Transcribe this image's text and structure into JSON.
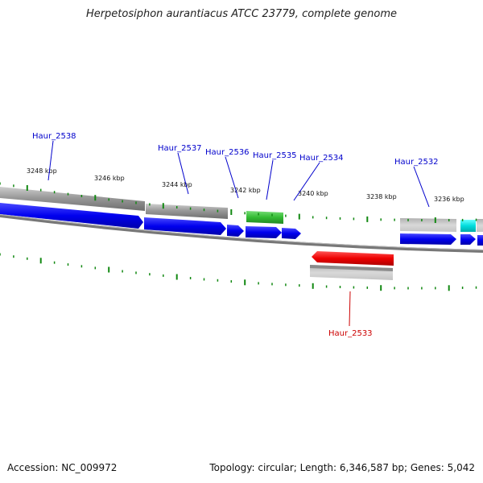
{
  "title": "Herpetosiphon aurantiacus ATCC 23779, complete genome",
  "footer": {
    "accession": "Accession: NC_009972",
    "summary": "Topology: circular; Length: 6,346,587 bp; Genes: 5,042"
  },
  "colors": {
    "forward_cds": "#0000ee",
    "reverse_cds": "#ee0000",
    "rna_green": "#33bb33",
    "cyan_feature": "#00dddd",
    "gray_feature": "#888888",
    "backbone": "#808080",
    "tick": "#118811",
    "label_blue": "#0000cc",
    "label_red": "#cc0000"
  },
  "tick_labels": [
    "3248 kbp",
    "3246 kbp",
    "3244 kbp",
    "3242 kbp",
    "3240 kbp",
    "3238 kbp",
    "3236 kbp"
  ],
  "gene_labels": [
    {
      "text": "Haur_2538",
      "strand": "forward"
    },
    {
      "text": "Haur_2537",
      "strand": "forward"
    },
    {
      "text": "Haur_2536",
      "strand": "forward"
    },
    {
      "text": "Haur_2535",
      "strand": "forward"
    },
    {
      "text": "Haur_2534",
      "strand": "forward"
    },
    {
      "text": "Haur_2532",
      "strand": "forward"
    },
    {
      "text": "Haur_2533",
      "strand": "reverse"
    }
  ]
}
